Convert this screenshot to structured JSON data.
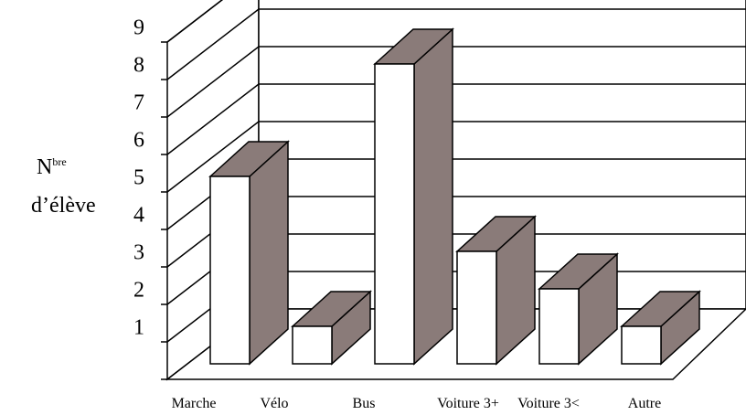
{
  "chart_data": {
    "type": "bar",
    "categories": [
      "Marche",
      "Vélo",
      "Bus",
      "Voiture 3+",
      "Voiture 3<",
      "Autre"
    ],
    "values": [
      5,
      1,
      8,
      3,
      2,
      1
    ],
    "ylabel_main": "N",
    "ylabel_sup": "bre",
    "ylabel_line2": "d’élève",
    "yticks": [
      "1",
      "2",
      "3",
      "4",
      "5",
      "6",
      "7",
      "8",
      "9"
    ],
    "ylim": [
      0,
      9
    ],
    "grid": true,
    "colors": {
      "front": "#ffffff",
      "side": "#8a7b79",
      "top": "#8a7b79",
      "line": "#000000"
    }
  }
}
